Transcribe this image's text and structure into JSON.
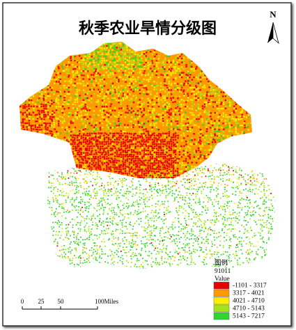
{
  "title": "秋季农业旱情分级图",
  "north_arrow": "N",
  "legend": {
    "heading": "图例",
    "layer": "91011",
    "field": "Value",
    "items": [
      {
        "label": "-1101 - 3317",
        "color": "#e60000"
      },
      {
        "label": "3317 - 4021",
        "color": "#ff9a00"
      },
      {
        "label": "4021 - 4710",
        "color": "#ffee00"
      },
      {
        "label": "4710 - 5143",
        "color": "#a6e619"
      },
      {
        "label": "5143 - 7217",
        "color": "#2fd62f"
      }
    ]
  },
  "scale_bar": {
    "labels": [
      "0",
      "25",
      "50",
      "100Miles"
    ]
  }
}
